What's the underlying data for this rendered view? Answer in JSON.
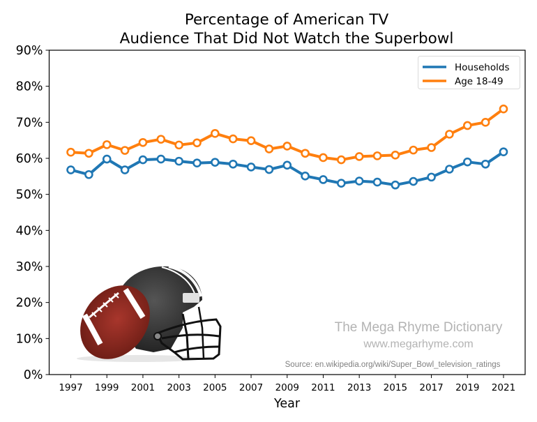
{
  "chart_data": {
    "type": "line",
    "title": [
      "Percentage of American TV",
      "Audience That Did Not Watch the Superbowl"
    ],
    "xlabel": "Year",
    "ylabel": "",
    "x": [
      1997,
      1998,
      1999,
      2000,
      2001,
      2002,
      2003,
      2004,
      2005,
      2006,
      2007,
      2008,
      2009,
      2010,
      2011,
      2012,
      2013,
      2014,
      2015,
      2016,
      2017,
      2018,
      2019,
      2020,
      2021
    ],
    "xlim": [
      1995.8,
      2022.2
    ],
    "ylim": [
      0,
      90
    ],
    "xticks": [
      1997,
      1999,
      2001,
      2003,
      2005,
      2007,
      2009,
      2011,
      2013,
      2015,
      2017,
      2019,
      2021
    ],
    "xtick_labels": [
      "1997",
      "1999",
      "2001",
      "2003",
      "2005",
      "2007",
      "2009",
      "2011",
      "2013",
      "2015",
      "2017",
      "2019",
      "2021"
    ],
    "yticks": [
      0,
      10,
      20,
      30,
      40,
      50,
      60,
      70,
      80,
      90
    ],
    "ytick_labels": [
      "0%",
      "10%",
      "20%",
      "30%",
      "40%",
      "50%",
      "60%",
      "70%",
      "80%",
      "90%"
    ],
    "grid": false,
    "legend_position": "top-right",
    "series": [
      {
        "name": "Households",
        "color": "#1f77b4",
        "values": [
          56.8,
          55.5,
          59.8,
          56.8,
          59.6,
          59.8,
          59.2,
          58.7,
          58.9,
          58.4,
          57.6,
          56.9,
          58.1,
          55.1,
          54.1,
          53.1,
          53.7,
          53.4,
          52.6,
          53.6,
          54.8,
          57.0,
          59.0,
          58.4,
          61.8
        ]
      },
      {
        "name": "Age 18-49",
        "color": "#ff7f0e",
        "values": [
          61.7,
          61.4,
          63.8,
          62.2,
          64.4,
          65.3,
          63.7,
          64.3,
          66.9,
          65.4,
          64.9,
          62.6,
          63.4,
          61.4,
          60.2,
          59.6,
          60.5,
          60.7,
          60.9,
          62.3,
          63.0,
          66.7,
          69.1,
          70.0,
          73.7
        ]
      }
    ],
    "annotations": {
      "watermark_title": "The Mega Rhyme Dictionary",
      "watermark_url": "www.megarhyme.com",
      "source": "Source: en.wikipedia.org/wiki/Super_Bowl_television_ratings",
      "image": "football-and-helmet"
    }
  }
}
